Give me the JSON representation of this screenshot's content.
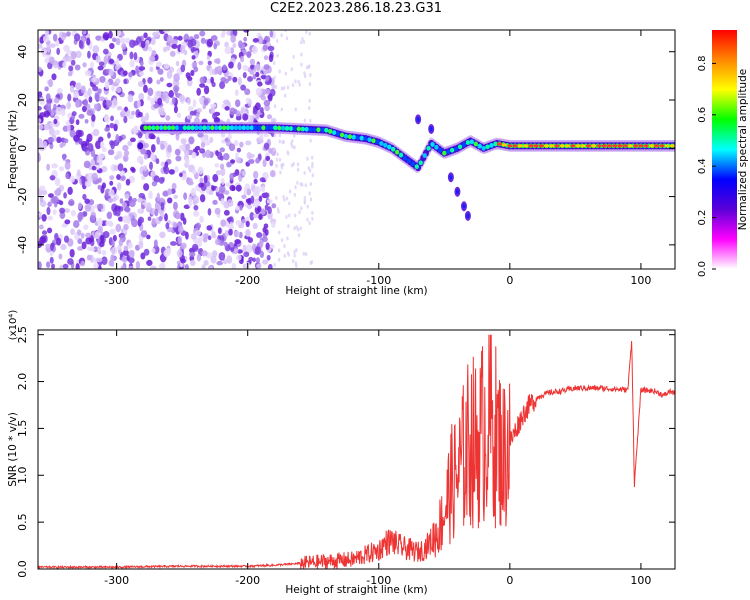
{
  "title": "C2E2.2023.286.18.23.G31",
  "chart_data": [
    {
      "type": "heatmap",
      "title": "",
      "xlabel": "Height of straight line (km)",
      "ylabel": "Frequency (Hz)",
      "xlim": [
        -360,
        126
      ],
      "ylim": [
        -50,
        49
      ],
      "xticks": [
        -300,
        -200,
        -100,
        0,
        100
      ],
      "yticks": [
        -40,
        -20,
        0,
        20,
        40
      ],
      "colorbar": {
        "label": "Normalized spectral amplitude",
        "range": [
          0,
          0.93
        ],
        "ticks": [
          0.0,
          0.2,
          0.4,
          0.6,
          0.8
        ],
        "colormap": [
          "#ffffff",
          "#ff00ff",
          "#5a00d8",
          "#0000ff",
          "#00ffff",
          "#00ff00",
          "#ffff00",
          "#ff8800",
          "#ff0000"
        ]
      },
      "noise_region": {
        "x_range": [
          -360,
          -180
        ],
        "sparse_until": -150
      },
      "signal_track": [
        {
          "x": -280,
          "y": 8.5
        },
        {
          "x": -250,
          "y": 8.5
        },
        {
          "x": -230,
          "y": 8.5
        },
        {
          "x": -200,
          "y": 8.5
        },
        {
          "x": -180,
          "y": 8.5
        },
        {
          "x": -160,
          "y": 8
        },
        {
          "x": -140,
          "y": 7.5
        },
        {
          "x": -125,
          "y": 5
        },
        {
          "x": -110,
          "y": 4
        },
        {
          "x": -100,
          "y": 2.5
        },
        {
          "x": -90,
          "y": 0
        },
        {
          "x": -80,
          "y": -4
        },
        {
          "x": -70,
          "y": -8
        },
        {
          "x": -60,
          "y": 2
        },
        {
          "x": -50,
          "y": -2
        },
        {
          "x": -40,
          "y": 0
        },
        {
          "x": -30,
          "y": 3
        },
        {
          "x": -20,
          "y": 0
        },
        {
          "x": -10,
          "y": 2
        },
        {
          "x": 0,
          "y": 1
        },
        {
          "x": 20,
          "y": 1
        },
        {
          "x": 60,
          "y": 1
        },
        {
          "x": 100,
          "y": 1
        },
        {
          "x": 126,
          "y": 1
        }
      ],
      "side_branches": [
        {
          "x": -45,
          "y": -12
        },
        {
          "x": -40,
          "y": -18
        },
        {
          "x": -35,
          "y": -24
        },
        {
          "x": -32,
          "y": -28
        },
        {
          "x": -60,
          "y": 8
        },
        {
          "x": -70,
          "y": 12
        }
      ]
    },
    {
      "type": "line",
      "title": "",
      "xlabel": "Height of straight line (km)",
      "ylabel": "SNR (10 * v/v)",
      "yscale_label": "(x10⁴)",
      "xlim": [
        -360,
        126
      ],
      "ylim": [
        0,
        2.55
      ],
      "xticks": [
        -300,
        -200,
        -100,
        0,
        100
      ],
      "yticks": [
        0.0,
        0.5,
        1.0,
        1.5,
        2.0,
        2.5
      ],
      "color": "#ee3333",
      "series": [
        {
          "x": [
            -360,
            -300,
            -250,
            -200,
            -180,
            -160,
            -140,
            -120,
            -110,
            -100,
            -95,
            -90,
            -85,
            -80,
            -75,
            -70,
            -65,
            -60,
            -55,
            -50,
            -45,
            -40,
            -35,
            -30,
            -25,
            -20,
            -15,
            -10,
            -5,
            0,
            5,
            10,
            15,
            20,
            25,
            30,
            40,
            50,
            60,
            70,
            80,
            90,
            93,
            95,
            100,
            110,
            118,
            122,
            126
          ],
          "y": [
            0.02,
            0.02,
            0.03,
            0.03,
            0.04,
            0.06,
            0.08,
            0.1,
            0.15,
            0.2,
            0.28,
            0.3,
            0.25,
            0.22,
            0.2,
            0.18,
            0.22,
            0.3,
            0.4,
            0.6,
            0.9,
            1.0,
            1.2,
            1.4,
            1.3,
            1.5,
            1.6,
            1.4,
            1.2,
            1.35,
            1.5,
            1.65,
            1.75,
            1.82,
            1.86,
            1.88,
            1.9,
            1.93,
            1.93,
            1.93,
            1.92,
            1.91,
            2.45,
            0.9,
            1.91,
            1.9,
            1.85,
            1.9,
            1.87
          ]
        }
      ]
    }
  ]
}
